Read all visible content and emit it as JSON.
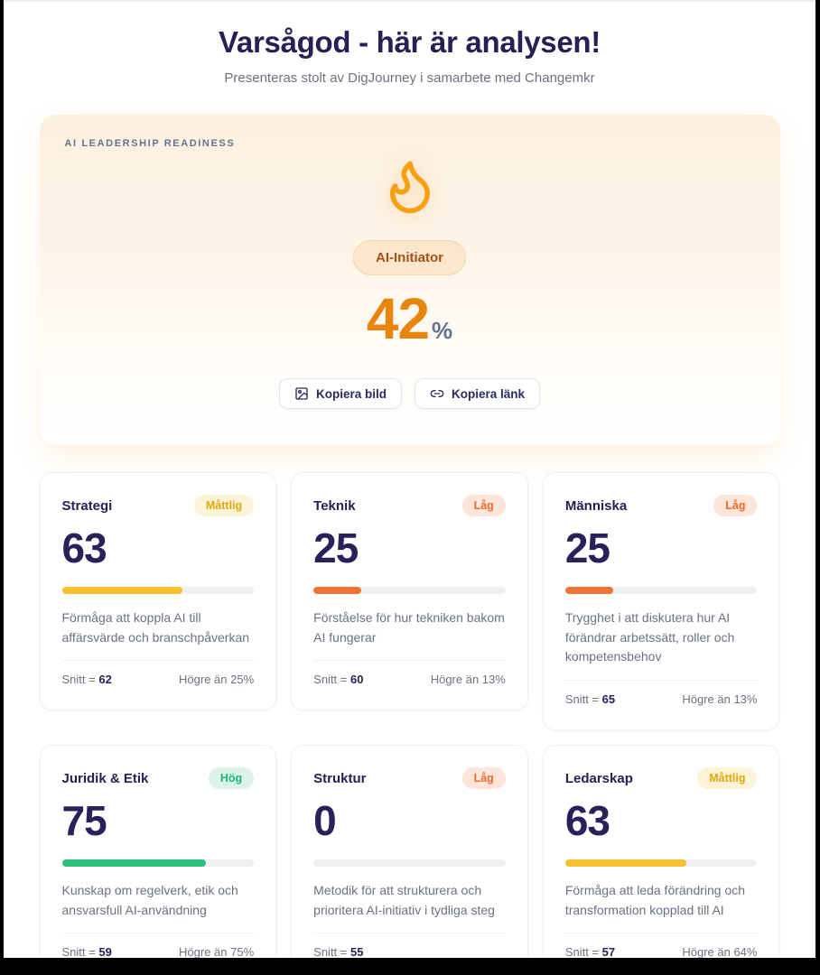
{
  "page": {
    "title": "Varsågod - här är analysen!",
    "subtitle": "Presenteras stolt av DigJourney i samarbete med Changemkr"
  },
  "hero": {
    "label": "AI LEADERSHIP READINESS",
    "icon": "flame-icon",
    "badge": "AI-Initiator",
    "score": "42",
    "score_unit": "%",
    "buttons": {
      "copy_image": "Kopiera bild",
      "copy_link": "Kopiera länk"
    }
  },
  "colors": {
    "title_navy": "#262054",
    "score_navy": "#28215a",
    "hero_orange": "#e8850f",
    "flame_orange": "#f6a013",
    "levels": {
      "medium": {
        "text": "#e0a80c",
        "bg": "#fdf4d7",
        "bar": "#f6c12d"
      },
      "low": {
        "text": "#ed6a2f",
        "bg": "#fde5d9",
        "bar": "#ee7434"
      },
      "high": {
        "text": "#16b87a",
        "bg": "#dcf4e7",
        "bar": "#27c17c"
      }
    }
  },
  "cards": [
    {
      "title": "Strategi",
      "badge": "Måttlig",
      "level": "medium",
      "score": "63",
      "progress": 63,
      "description": "Förmåga att koppla AI till affärsvärde och branschpåverkan",
      "average_label": "Snitt =",
      "average": "62",
      "percentile": "Högre än 25%"
    },
    {
      "title": "Teknik",
      "badge": "Låg",
      "level": "low",
      "score": "25",
      "progress": 25,
      "description": "Förståelse för hur tekniken bakom AI fungerar",
      "average_label": "Snitt =",
      "average": "60",
      "percentile": "Högre än 13%"
    },
    {
      "title": "Människa",
      "badge": "Låg",
      "level": "low",
      "score": "25",
      "progress": 25,
      "description": "Trygghet i att diskutera hur AI förändrar arbetssätt, roller och kompetensbehov",
      "average_label": "Snitt =",
      "average": "65",
      "percentile": "Högre än 13%"
    },
    {
      "title": "Juridik & Etik",
      "badge": "Hög",
      "level": "high",
      "score": "75",
      "progress": 75,
      "description": "Kunskap om regelverk, etik och ansvarsfull AI-användning",
      "average_label": "Snitt =",
      "average": "59",
      "percentile": "Högre än 75%"
    },
    {
      "title": "Struktur",
      "badge": "Låg",
      "level": "low",
      "score": "0",
      "progress": 0,
      "description": "Metodik för att strukturera och prioritera AI-initiativ i tydliga steg",
      "average_label": "Snitt =",
      "average": "55",
      "percentile": ""
    },
    {
      "title": "Ledarskap",
      "badge": "Måttlig",
      "level": "medium",
      "score": "63",
      "progress": 63,
      "description": "Förmåga att leda förändring och transformation kopplad till AI",
      "average_label": "Snitt =",
      "average": "57",
      "percentile": "Högre än 64%"
    }
  ]
}
